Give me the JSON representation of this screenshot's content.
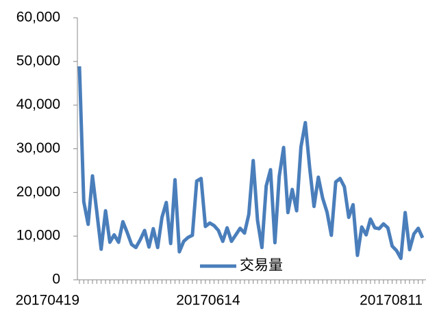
{
  "chart_data": {
    "type": "line",
    "categories": [
      "20170419",
      null,
      null,
      null,
      null,
      null,
      null,
      null,
      null,
      null,
      null,
      null,
      null,
      null,
      null,
      null,
      null,
      null,
      null,
      null,
      null,
      null,
      null,
      null,
      null,
      null,
      null,
      null,
      null,
      null,
      null,
      null,
      null,
      null,
      null,
      null,
      null,
      "20170614",
      null,
      null,
      null,
      null,
      null,
      null,
      null,
      null,
      null,
      null,
      null,
      null,
      null,
      null,
      null,
      null,
      null,
      null,
      null,
      null,
      null,
      null,
      null,
      null,
      null,
      null,
      null,
      null,
      null,
      null,
      null,
      null,
      null,
      null,
      null,
      null,
      null,
      null,
      null,
      null,
      null,
      "20170811"
    ],
    "series": [
      {
        "name": "交易量",
        "color": "#4a7ebb",
        "values": [
          48900,
          17900,
          12700,
          23800,
          15500,
          7000,
          15800,
          8600,
          10300,
          8600,
          13300,
          10800,
          8100,
          7400,
          9200,
          11300,
          7500,
          11700,
          7400,
          14300,
          17700,
          8300,
          22900,
          6400,
          8800,
          9700,
          10200,
          22600,
          23200,
          12200,
          13000,
          12400,
          11300,
          8800,
          11900,
          8800,
          10300,
          11800,
          10700,
          15000,
          27300,
          13600,
          7400,
          21500,
          25200,
          8500,
          23700,
          30300,
          15400,
          20700,
          15800,
          30400,
          36000,
          25700,
          16800,
          23500,
          18700,
          15500,
          10200,
          22400,
          23200,
          21300,
          14300,
          17200,
          5600,
          12100,
          10300,
          13900,
          11900,
          11700,
          12800,
          11900,
          7700,
          6700,
          4900,
          15400,
          6900,
          10500,
          11800,
          9600
        ]
      }
    ],
    "ylim": [
      0,
      60000
    ],
    "yticks": [
      0,
      {
        "value": 10000,
        "label": "10,000"
      },
      {
        "value": 20000,
        "label": "20,000"
      },
      {
        "value": 30000,
        "label": "30,000"
      },
      {
        "value": 40000,
        "label": "40,000"
      },
      {
        "value": 50000,
        "label": "50,000"
      },
      {
        "value": 60000,
        "label": "60,000"
      }
    ],
    "legend": "bottom"
  }
}
